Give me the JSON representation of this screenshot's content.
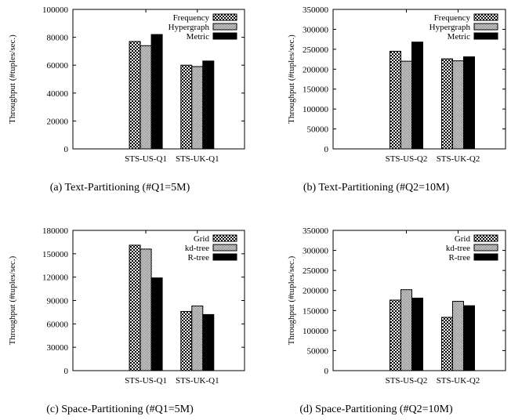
{
  "chart_data": [
    {
      "type": "bar",
      "caption": "(a)  Text-Partitioning  (#Q1=5M)",
      "ylabel": "Throughput (#tuples/sec.)",
      "xlabel": "",
      "ylim": [
        0,
        100000
      ],
      "yticks": [
        "0",
        "20000",
        "40000",
        "60000",
        "80000",
        "100000"
      ],
      "categories": [
        "STS-US-Q1",
        "STS-UK-Q1"
      ],
      "legend_position": "top-right",
      "grid": false,
      "series": [
        {
          "name": "Frequency",
          "pattern": "checker",
          "values": [
            77000,
            60000
          ]
        },
        {
          "name": "Hypergraph",
          "pattern": "fine",
          "values": [
            74000,
            59000
          ]
        },
        {
          "name": "Metric",
          "pattern": "solid",
          "values": [
            82000,
            63000
          ]
        }
      ]
    },
    {
      "type": "bar",
      "caption": "(b)  Text-Partitioning  (#Q2=10M)",
      "ylabel": "Throughput (#tuples/sec.)",
      "xlabel": "",
      "ylim": [
        0,
        350000
      ],
      "yticks": [
        "0",
        "50000",
        "100000",
        "150000",
        "200000",
        "250000",
        "300000",
        "350000"
      ],
      "categories": [
        "STS-US-Q2",
        "STS-UK-Q2"
      ],
      "legend_position": "top-right",
      "grid": false,
      "series": [
        {
          "name": "Frequency",
          "pattern": "checker",
          "values": [
            245000,
            226000
          ]
        },
        {
          "name": "Hypergraph",
          "pattern": "fine",
          "values": [
            220000,
            221000
          ]
        },
        {
          "name": "Metric",
          "pattern": "solid",
          "values": [
            268000,
            231000
          ]
        }
      ]
    },
    {
      "type": "bar",
      "caption": "(c)  Space-Partitioning  (#Q1=5M)",
      "ylabel": "Throughput (#tuples/sec.)",
      "xlabel": "",
      "ylim": [
        0,
        180000
      ],
      "yticks": [
        "0",
        "30000",
        "60000",
        "90000",
        "120000",
        "150000",
        "180000"
      ],
      "categories": [
        "STS-US-Q1",
        "STS-UK-Q1"
      ],
      "legend_position": "top-right",
      "grid": false,
      "series": [
        {
          "name": "Grid",
          "pattern": "checker",
          "values": [
            161000,
            76000
          ]
        },
        {
          "name": "kd-tree",
          "pattern": "fine",
          "values": [
            156000,
            83000
          ]
        },
        {
          "name": "R-tree",
          "pattern": "solid",
          "values": [
            119000,
            72000
          ]
        }
      ]
    },
    {
      "type": "bar",
      "caption": "(d)  Space-Partitioning  (#Q2=10M)",
      "ylabel": "Throughput (#tuples/sec.)",
      "xlabel": "",
      "ylim": [
        0,
        350000
      ],
      "yticks": [
        "0",
        "50000",
        "100000",
        "150000",
        "200000",
        "250000",
        "300000",
        "350000"
      ],
      "categories": [
        "STS-US-Q2",
        "STS-UK-Q2"
      ],
      "legend_position": "top-right",
      "grid": false,
      "series": [
        {
          "name": "Grid",
          "pattern": "checker",
          "values": [
            176000,
            133000
          ]
        },
        {
          "name": "kd-tree",
          "pattern": "fine",
          "values": [
            202000,
            173000
          ]
        },
        {
          "name": "R-tree",
          "pattern": "solid",
          "values": [
            181000,
            162000
          ]
        }
      ]
    }
  ]
}
